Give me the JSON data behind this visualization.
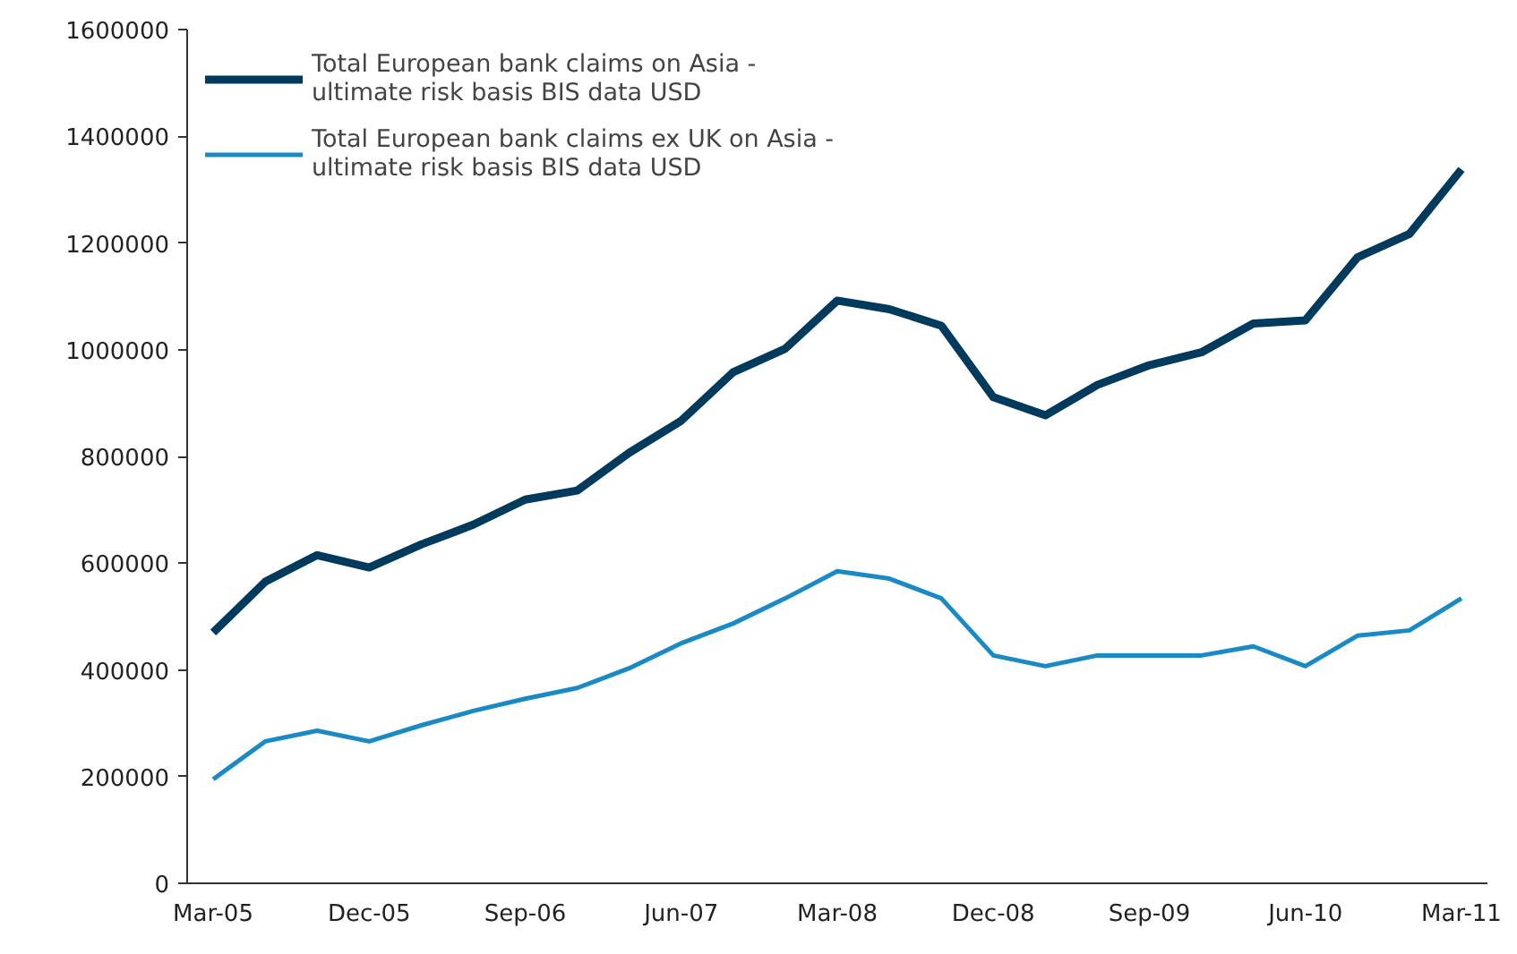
{
  "chart_data": {
    "type": "line",
    "categories": [
      "Mar-05",
      null,
      null,
      "Dec-05",
      null,
      null,
      "Sep-06",
      null,
      null,
      "Jun-07",
      null,
      null,
      "Mar-08",
      null,
      null,
      "Dec-08",
      null,
      null,
      "Sep-09",
      null,
      null,
      "Jun-10",
      null,
      null,
      "Mar-11"
    ],
    "series": [
      {
        "name": "Total European bank claims on Asia - ultimate risk basis BIS data USD",
        "color": "#003a5c",
        "values": [
          470000,
          565000,
          615000,
          592000,
          635000,
          672000,
          719000,
          736000,
          807000,
          867000,
          958000,
          1002000,
          1092000,
          1076000,
          1045000,
          911000,
          877000,
          934000,
          971000,
          995000,
          1049000,
          1055000,
          1173000,
          1217000,
          1338000
        ]
      },
      {
        "name": "Total European bank claims ex UK on Asia - ultimate risk basis BIS data USD",
        "color": "#1a8ac6",
        "values": [
          195000,
          266000,
          286000,
          266000,
          296000,
          323000,
          346000,
          366000,
          403000,
          450000,
          487000,
          534000,
          585000,
          571000,
          534000,
          427000,
          407000,
          427000,
          427000,
          427000,
          444000,
          407000,
          464000,
          474000,
          534000
        ]
      }
    ],
    "ylim": [
      0,
      1600000
    ],
    "yticks": [
      0,
      200000,
      400000,
      600000,
      800000,
      1000000,
      1200000,
      1400000,
      1600000
    ],
    "grid": false,
    "legend": "top left"
  }
}
